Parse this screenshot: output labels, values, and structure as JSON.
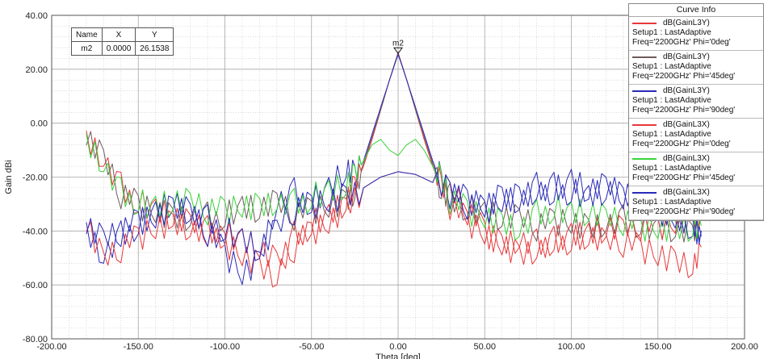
{
  "chart_data": {
    "type": "line",
    "xlabel": "Theta [deg]",
    "ylabel": "Gain dBi",
    "xlim": [
      -200,
      200
    ],
    "ylim": [
      -80,
      40
    ],
    "x_ticks": [
      "-200.00",
      "-150.00",
      "-100.00",
      "-50.00",
      "0.00",
      "50.00",
      "100.00",
      "150.00",
      "200.00"
    ],
    "y_ticks": [
      "40.00",
      "20.00",
      "0.00",
      "-20.00",
      "-40.00",
      "-60.00",
      "-80.00"
    ],
    "grid": true,
    "legend_title": "Curve Info",
    "series": [
      {
        "name": "dB(GainL3Y)",
        "setup": "Setup1 : LastAdaptive",
        "params": "Freq='2200GHz' Phi='0deg'",
        "color": "#e8383a",
        "x": [
          -180,
          -170,
          -160,
          -150,
          -140,
          -130,
          -120,
          -110,
          -100,
          -90,
          -80,
          -70,
          -60,
          -50,
          -40,
          -30,
          -25,
          -20,
          -15,
          -10,
          -5,
          0,
          5,
          10,
          15,
          20,
          25,
          30,
          40,
          50,
          60,
          70,
          80,
          90,
          100,
          110,
          120,
          130,
          140,
          150,
          160,
          170,
          175
        ],
        "y": [
          -5,
          -12,
          -24,
          -30,
          -33,
          -36,
          -38,
          -40,
          -44,
          -48,
          -52,
          -56,
          -42,
          -38,
          -35,
          -30,
          -24,
          -16,
          -6,
          5,
          16,
          26.15,
          16,
          5,
          -6,
          -16,
          -24,
          -30,
          -36,
          -40,
          -44,
          -42,
          -45,
          -44,
          -42,
          -43,
          -45,
          -44,
          -46,
          -48,
          -50,
          -52,
          -46
        ]
      },
      {
        "name": "dB(GainL3Y)",
        "setup": "Setup1 : LastAdaptive",
        "params": "Freq='2200GHz' Phi='45deg'",
        "color": "#6e5a5a",
        "x": [
          -180,
          -170,
          -160,
          -150,
          -140,
          -130,
          -120,
          -110,
          -100,
          -90,
          -80,
          -70,
          -60,
          -50,
          -40,
          -30,
          -25,
          -20,
          -15,
          -10,
          -5,
          0,
          5,
          10,
          15,
          20,
          25,
          30,
          40,
          50,
          60,
          70,
          80,
          90,
          100,
          110,
          120,
          130,
          140,
          150,
          160,
          170,
          175
        ],
        "y": [
          -6,
          -14,
          -26,
          -30,
          -32,
          -34,
          -34,
          -35,
          -35,
          -32,
          -33,
          -30,
          -34,
          -32,
          -30,
          -28,
          -24,
          -15,
          -5,
          5,
          16,
          26,
          16,
          5,
          -5,
          -15,
          -24,
          -28,
          -32,
          -34,
          -36,
          -36,
          -38,
          -36,
          -36,
          -38,
          -36,
          -36,
          -38,
          -40,
          -40,
          -42,
          -40
        ]
      },
      {
        "name": "dB(GainL3Y)",
        "setup": "Setup1 : LastAdaptive",
        "params": "Freq='2200GHz' Phi='90deg'",
        "color": "#2a2ab8",
        "x": [
          -180,
          -170,
          -160,
          -150,
          -140,
          -130,
          -120,
          -110,
          -100,
          -90,
          -80,
          -70,
          -60,
          -50,
          -40,
          -30,
          -25,
          -20,
          -15,
          -10,
          -5,
          0,
          5,
          10,
          15,
          20,
          25,
          30,
          40,
          50,
          60,
          70,
          80,
          90,
          100,
          110,
          120,
          130,
          140,
          150,
          160,
          170,
          175
        ],
        "y": [
          -39,
          -48,
          -42,
          -38,
          -34,
          -30,
          -34,
          -40,
          -48,
          -55,
          -50,
          -28,
          -26,
          -30,
          -25,
          -18,
          -20,
          -14,
          -4,
          6,
          16,
          25.5,
          16,
          6,
          -4,
          -14,
          -22,
          -26,
          -28,
          -30,
          -26,
          -28,
          -24,
          -26,
          -22,
          -26,
          -24,
          -26,
          -28,
          -30,
          -34,
          -38,
          -42
        ]
      },
      {
        "name": "dB(GainL3X)",
        "setup": "Setup1 : LastAdaptive",
        "params": "Freq='2200GHz' Phi='0deg'",
        "color": "#e8383a",
        "x": [
          -180,
          -170,
          -160,
          -150,
          -140,
          -130,
          -120,
          -110,
          -100,
          -90,
          -80,
          -70,
          -60,
          -50,
          -40,
          -30,
          -20,
          -10,
          0,
          10,
          20,
          30,
          40,
          50,
          60,
          70,
          80,
          90,
          100,
          110,
          120,
          130,
          140,
          150,
          160,
          170,
          175
        ],
        "y": [
          -38,
          -52,
          -46,
          -42,
          -38,
          -36,
          -38,
          -40,
          -42,
          -44,
          -48,
          -52,
          -46,
          -40,
          -36,
          -30,
          -24,
          -20,
          -18,
          -19,
          -22,
          -26,
          -32,
          -40,
          -44,
          -48,
          -46,
          -44,
          -44,
          -42,
          -40,
          -40,
          -38,
          -38,
          -36,
          -34,
          -32
        ]
      },
      {
        "name": "dB(GainL3X)",
        "setup": "Setup1 : LastAdaptive",
        "params": "Freq='2200GHz' Phi='45deg'",
        "color": "#3ad23a",
        "x": [
          -180,
          -170,
          -160,
          -150,
          -140,
          -130,
          -120,
          -110,
          -100,
          -90,
          -80,
          -70,
          -60,
          -50,
          -40,
          -30,
          -25,
          -20,
          -15,
          -10,
          -5,
          0,
          5,
          10,
          15,
          20,
          25,
          30,
          40,
          50,
          60,
          70,
          80,
          90,
          100,
          110,
          120,
          130,
          140,
          150,
          160,
          170,
          175
        ],
        "y": [
          -6,
          -14,
          -26,
          -30,
          -32,
          -30,
          -30,
          -32,
          -32,
          -30,
          -30,
          -28,
          -30,
          -28,
          -26,
          -24,
          -20,
          -14,
          -8,
          -6,
          -10,
          -12,
          -8,
          -6,
          -10,
          -16,
          -22,
          -28,
          -32,
          -34,
          -36,
          -38,
          -34,
          -32,
          -34,
          -34,
          -36,
          -36,
          -38,
          -38,
          -38,
          -38,
          -38
        ]
      },
      {
        "name": "dB(GainL3X)",
        "setup": "Setup1 : LastAdaptive",
        "params": "Freq='2200GHz' Phi='90deg'",
        "color": "#2a2ab8",
        "x": [
          -180,
          -170,
          -160,
          -150,
          -140,
          -130,
          -120,
          -110,
          -100,
          -90,
          -80,
          -70,
          -60,
          -50,
          -40,
          -30,
          -20,
          -10,
          0,
          10,
          20,
          30,
          40,
          50,
          60,
          70,
          80,
          90,
          100,
          110,
          120,
          130,
          140,
          150,
          160,
          170,
          175
        ],
        "y": [
          -39,
          -44,
          -40,
          -36,
          -34,
          -30,
          -32,
          -36,
          -40,
          -44,
          -48,
          -40,
          -32,
          -30,
          -28,
          -26,
          -24,
          -20,
          -18,
          -19,
          -22,
          -26,
          -30,
          -32,
          -28,
          -26,
          -24,
          -24,
          -26,
          -28,
          -26,
          -28,
          -30,
          -32,
          -34,
          -36,
          -40
        ]
      }
    ],
    "marker": {
      "label": "m2",
      "table_headers": [
        "Name",
        "X",
        "Y"
      ],
      "name": "m2",
      "x": "0.0000",
      "y": "26.1538",
      "x_value": 0,
      "y_value": 26.1538
    }
  }
}
